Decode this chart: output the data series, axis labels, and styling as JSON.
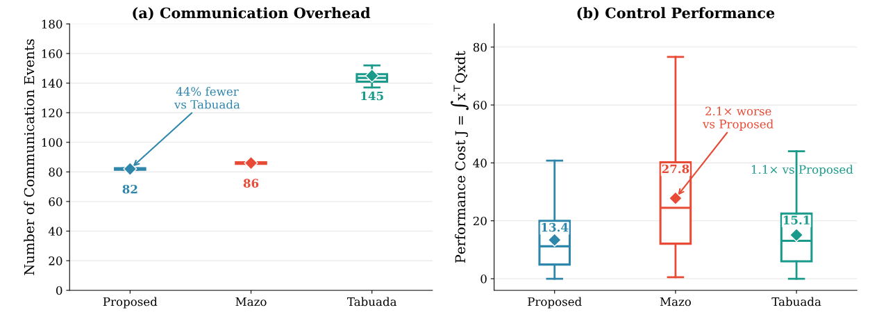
{
  "chart_data": [
    {
      "type": "box",
      "title": "(a) Communication Overhead",
      "ylabel": "Number of Communication Events",
      "categories": [
        "Proposed",
        "Mazo",
        "Tabuada"
      ],
      "colors": [
        "#2e86ab",
        "#e84a35",
        "#1a9a8a"
      ],
      "boxes": [
        {
          "low": 81.5,
          "q1": 81.5,
          "median": 82,
          "q3": 82.5,
          "high": 82.5,
          "mean": 82
        },
        {
          "low": 85.5,
          "q1": 85.5,
          "median": 86,
          "q3": 86.5,
          "high": 86.5,
          "mean": 86
        },
        {
          "low": 137,
          "q1": 141,
          "median": 143.5,
          "q3": 146,
          "high": 152,
          "mean": 145
        }
      ],
      "ylim": [
        0,
        180
      ],
      "yticks": [
        0,
        20,
        40,
        60,
        80,
        100,
        120,
        140,
        160,
        180
      ],
      "grid": "y",
      "marker": "diamond",
      "annotations": [
        {
          "text": "82",
          "x": "Proposed",
          "y": 82
        },
        {
          "text": "86",
          "x": "Mazo",
          "y": 86
        },
        {
          "text": "145",
          "x": "Tabuada",
          "y": 145
        },
        {
          "text": "44% fewer\nvs Tabuada",
          "x": "Proposed",
          "y": 82
        }
      ]
    },
    {
      "type": "box",
      "title": "(b) Control Performance",
      "ylabel": "Performance Cost J = ∫x$^{⊤}$Qxdt",
      "categories": [
        "Proposed",
        "Mazo",
        "Tabuada"
      ],
      "colors": [
        "#2e86ab",
        "#e84a35",
        "#1a9a8a"
      ],
      "boxes": [
        {
          "low": 0,
          "q1": 4.9,
          "median": 11.2,
          "q3": 20,
          "high": 40.8,
          "mean": 13.4
        },
        {
          "low": 0.5,
          "q1": 12.1,
          "median": 24.5,
          "q3": 40.2,
          "high": 76.6,
          "mean": 27.8
        },
        {
          "low": 0,
          "q1": 6,
          "median": 13.1,
          "q3": 22.5,
          "high": 44,
          "mean": 15.1
        }
      ],
      "ylim": [
        -4,
        88
      ],
      "yticks": [
        0,
        20,
        40,
        60,
        80
      ],
      "grid": "y",
      "marker": "diamond",
      "annotations": [
        "13.4",
        "27.8",
        "15.1",
        "2.1× worse\nvs Proposed",
        "1.1× vs Proposed"
      ]
    }
  ]
}
